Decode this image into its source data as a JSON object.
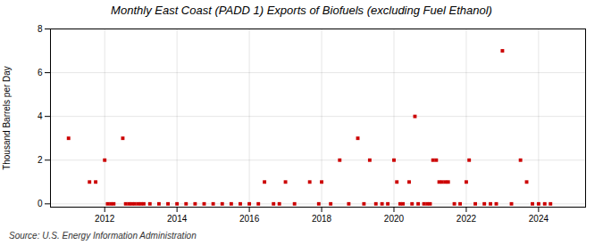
{
  "chart_data": {
    "type": "scatter",
    "title": "Monthly East Coast (PADD 1) Exports of Biofuels (excluding Fuel Ethanol)",
    "ylabel": "Thousand Barrels per Day",
    "source": "Source: U.S. Energy Information Administration",
    "color": "#cc0000",
    "marker": "square",
    "grid": true,
    "xlim": [
      2010.5,
      2025.3
    ],
    "ylim": [
      -0.15,
      8.0
    ],
    "xticks": [
      2012,
      2014,
      2016,
      2018,
      2020,
      2022,
      2024
    ],
    "yticks": [
      0,
      2,
      4,
      6,
      8
    ],
    "x": [
      2011.0,
      2011.58,
      2011.75,
      2012.0,
      2012.08,
      2012.17,
      2012.25,
      2012.5,
      2012.58,
      2012.67,
      2012.75,
      2012.83,
      2012.92,
      2013.0,
      2013.08,
      2013.25,
      2013.5,
      2013.75,
      2014.0,
      2014.25,
      2014.5,
      2014.75,
      2015.0,
      2015.25,
      2015.5,
      2015.75,
      2016.0,
      2016.25,
      2016.42,
      2016.67,
      2016.83,
      2017.0,
      2017.25,
      2017.67,
      2017.92,
      2018.0,
      2018.25,
      2018.5,
      2018.75,
      2019.0,
      2019.17,
      2019.33,
      2019.5,
      2019.67,
      2019.83,
      2020.0,
      2020.08,
      2020.17,
      2020.25,
      2020.42,
      2020.5,
      2020.58,
      2020.67,
      2020.83,
      2020.92,
      2021.0,
      2021.08,
      2021.17,
      2021.25,
      2021.33,
      2021.42,
      2021.5,
      2021.67,
      2021.83,
      2022.0,
      2022.08,
      2022.25,
      2022.5,
      2022.67,
      2022.83,
      2023.0,
      2023.25,
      2023.5,
      2023.67,
      2023.83,
      2024.0,
      2024.17,
      2024.33
    ],
    "values": [
      3.0,
      1.0,
      1.0,
      2.0,
      0.0,
      0.0,
      0.0,
      3.0,
      0.0,
      0.0,
      0.0,
      0.0,
      0.0,
      0.0,
      0.0,
      0.0,
      0.0,
      0.0,
      0.0,
      0.0,
      0.0,
      0.0,
      0.0,
      0.0,
      0.0,
      0.0,
      0.0,
      0.0,
      1.0,
      0.0,
      0.0,
      1.0,
      0.0,
      1.0,
      0.0,
      1.0,
      0.0,
      2.0,
      0.0,
      3.0,
      0.0,
      2.0,
      0.0,
      0.0,
      0.0,
      2.0,
      1.0,
      0.0,
      0.0,
      1.0,
      0.0,
      4.0,
      0.0,
      0.0,
      0.0,
      0.0,
      2.0,
      2.0,
      1.0,
      1.0,
      1.0,
      1.0,
      0.0,
      0.0,
      1.0,
      2.0,
      0.0,
      0.0,
      0.0,
      0.0,
      7.0,
      0.0,
      2.0,
      1.0,
      0.0,
      0.0,
      0.0,
      0.0
    ]
  }
}
